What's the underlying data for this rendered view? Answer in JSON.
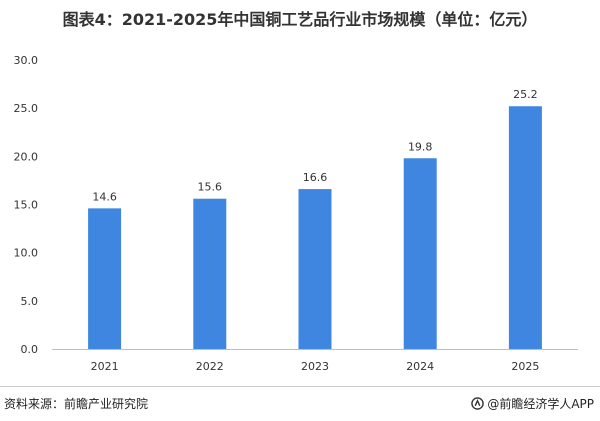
{
  "chart_data": {
    "type": "bar",
    "title": "图表4：2021-2025年中国铜工艺品行业市场规模（单位：亿元）",
    "categories": [
      "2021",
      "2022",
      "2023",
      "2024",
      "2025"
    ],
    "values": [
      14.6,
      15.6,
      16.6,
      19.8,
      25.2
    ],
    "value_labels": [
      "14.6",
      "15.6",
      "16.6",
      "19.8",
      "25.2"
    ],
    "yticks": [
      "0.0",
      "5.0",
      "10.0",
      "15.0",
      "20.0",
      "25.0",
      "30.0"
    ],
    "ylim": [
      0,
      30
    ],
    "grid": false,
    "legend": "none",
    "bar_color": "#3f86e0"
  },
  "footer": {
    "source": "资料来源：前瞻产业研究院",
    "brand": "@前瞻经济学人APP"
  }
}
